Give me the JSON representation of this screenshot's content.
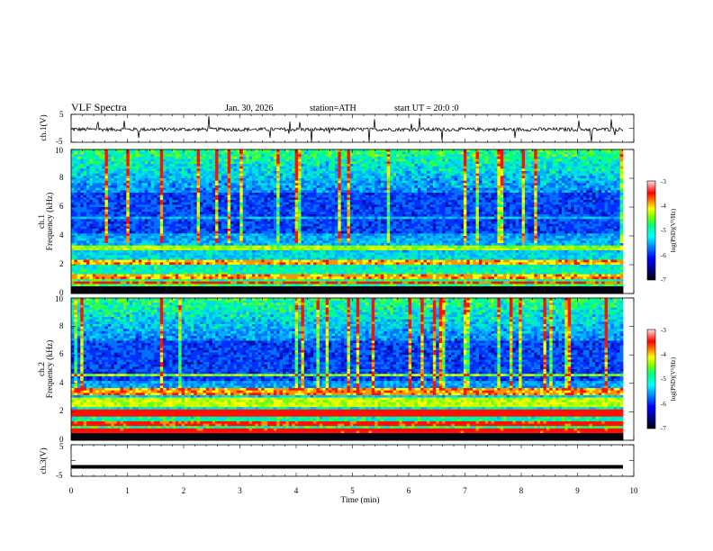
{
  "header": {
    "title": "VLF  Spectra",
    "date": "Jan. 30, 2026",
    "station": "station=ATH",
    "start": "start  UT  =   20:0  :0"
  },
  "chart_data": [
    {
      "type": "line",
      "ylabel": "ch.1(V)",
      "ylim": [
        -5,
        5
      ],
      "yticks": [
        "5",
        "-5"
      ],
      "xlim": [
        0,
        10
      ],
      "description_series": "noisy waveform near -0.5 V with sporadic spikes"
    },
    {
      "type": "heatmap",
      "ylabel": "ch.1\nFrequency  (kHz)",
      "ylabel_lines": [
        "ch.1",
        "Frequency  (kHz)"
      ],
      "ylim": [
        0,
        10
      ],
      "yticks": [
        "0",
        "2",
        "4",
        "6",
        "8",
        "10"
      ],
      "xlim": [
        0,
        9.8
      ],
      "colorbar": {
        "label": "log(PSD)(V²/Hz)",
        "range": [
          -7,
          -3
        ],
        "ticks": [
          "-3",
          "-4",
          "-5",
          "-6",
          "-7"
        ]
      }
    },
    {
      "type": "heatmap",
      "ylabel_lines": [
        "ch.2",
        "Frequency  (kHz)"
      ],
      "ylim": [
        0,
        10
      ],
      "yticks": [
        "0",
        "2",
        "4",
        "6",
        "8",
        "10"
      ],
      "xlim": [
        0,
        9.8
      ],
      "colorbar": {
        "label": "log(PSD)(V²/Hz)",
        "range": [
          -7,
          -3
        ],
        "ticks": [
          "-3",
          "-4",
          "-5",
          "-6",
          "-7"
        ]
      }
    },
    {
      "type": "line",
      "ylabel": "ch.3(V)",
      "ylim": [
        -5,
        5
      ],
      "yticks": [
        "5",
        "-5"
      ],
      "xlim": [
        0,
        10
      ],
      "constant_value": -2
    }
  ],
  "xaxis": {
    "label": "Time  (min)",
    "ticks": [
      "0",
      "1",
      "2",
      "3",
      "4",
      "5",
      "6",
      "7",
      "8",
      "9",
      "10"
    ]
  },
  "colors": {
    "spectral_scale": [
      "#000000",
      "#000080",
      "#0000ff",
      "#0080ff",
      "#00ffff",
      "#00ff80",
      "#80ff00",
      "#ffff00",
      "#ff8000",
      "#ff0000",
      "#ffffff"
    ]
  }
}
